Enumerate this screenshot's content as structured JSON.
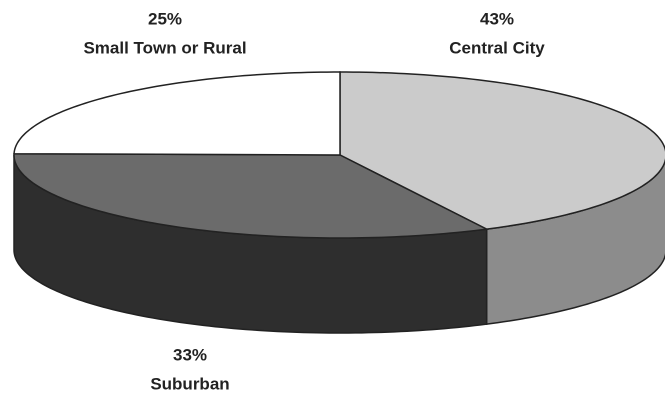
{
  "chart_data": {
    "type": "pie3d",
    "categories": [
      "Central City",
      "Suburban",
      "Small Town or Rural"
    ],
    "values": [
      43,
      33,
      25
    ],
    "value_labels": [
      "43%",
      "33%",
      "25%"
    ],
    "colors": [
      "#cbcbcb",
      "#6b6b6b",
      "#ffffff"
    ],
    "side_colors": [
      "#8c8c8c",
      "#2e2e2e",
      "#cfcfcf"
    ]
  }
}
